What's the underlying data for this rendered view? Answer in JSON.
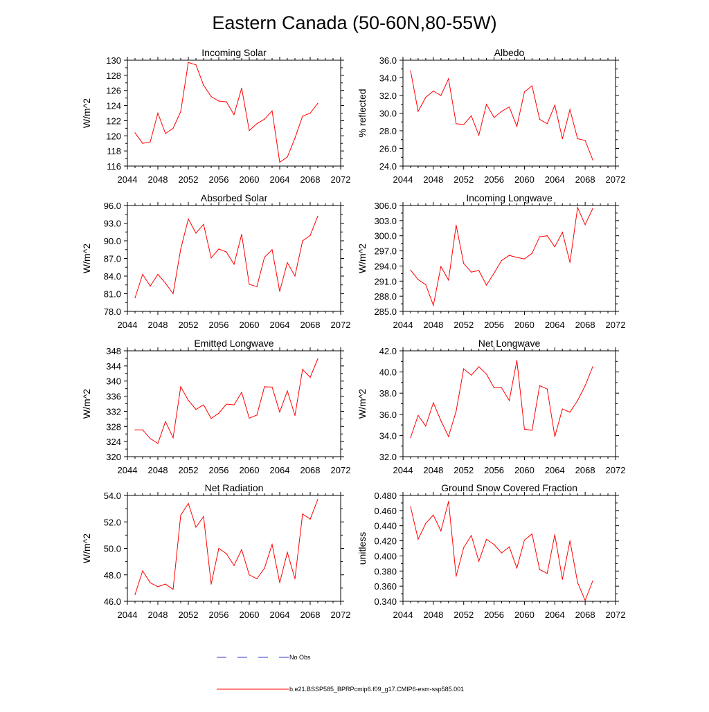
{
  "page_title": "Eastern Canada (50-60N,80-55W)",
  "legend": {
    "items": [
      {
        "label": "No Obs",
        "color": "#3333cc",
        "style": "dashed"
      },
      {
        "label": "b.e21.BSSP585_BPRPcmip6.f09_g17.CMIP6-esm-ssp585.001",
        "color": "#ff0000",
        "style": "solid"
      }
    ]
  },
  "chart_data": [
    {
      "type": "line",
      "title": "Incoming Solar",
      "xlabel": "",
      "ylabel": "W/m^2",
      "xlim": [
        2044,
        2072
      ],
      "ylim": [
        116,
        130
      ],
      "xticks": [
        "2044",
        "2048",
        "2052",
        "2056",
        "2060",
        "2064",
        "2068",
        "2072"
      ],
      "yticks": [
        "116",
        "118",
        "120",
        "122",
        "124",
        "126",
        "128",
        "130"
      ],
      "color": "#ff0000",
      "x": [
        2045,
        2046,
        2047,
        2048,
        2049,
        2050,
        2051,
        2052,
        2053,
        2054,
        2055,
        2056,
        2057,
        2058,
        2059,
        2060,
        2061,
        2062,
        2063,
        2064,
        2065,
        2066,
        2067,
        2068,
        2069
      ],
      "y": [
        120.4,
        119.0,
        119.2,
        123.0,
        120.3,
        121.0,
        123.2,
        129.7,
        129.4,
        126.7,
        125.2,
        124.6,
        124.5,
        122.8,
        126.3,
        120.7,
        121.6,
        122.2,
        123.3,
        116.5,
        117.2,
        119.7,
        122.6,
        123.0,
        124.3
      ]
    },
    {
      "type": "line",
      "title": "Albedo",
      "xlabel": "",
      "ylabel": "% reflected",
      "xlim": [
        2044,
        2072
      ],
      "ylim": [
        24,
        36
      ],
      "xticks": [
        "2044",
        "2048",
        "2052",
        "2056",
        "2060",
        "2064",
        "2068",
        "2072"
      ],
      "yticks": [
        "24.0",
        "26.0",
        "28.0",
        "30.0",
        "32.0",
        "34.0",
        "36.0"
      ],
      "color": "#ff0000",
      "x": [
        2045,
        2046,
        2047,
        2048,
        2049,
        2050,
        2051,
        2052,
        2053,
        2054,
        2055,
        2056,
        2057,
        2058,
        2059,
        2060,
        2061,
        2062,
        2063,
        2064,
        2065,
        2066,
        2067,
        2068,
        2069
      ],
      "y": [
        34.8,
        30.2,
        31.8,
        32.5,
        32.0,
        33.9,
        28.8,
        28.7,
        29.7,
        27.5,
        31.0,
        29.5,
        30.2,
        30.7,
        28.5,
        32.4,
        33.1,
        29.3,
        28.8,
        30.9,
        27.1,
        30.4,
        27.1,
        26.9,
        24.7
      ]
    },
    {
      "type": "line",
      "title": "Absorbed Solar",
      "xlabel": "",
      "ylabel": "W/m^2",
      "xlim": [
        2044,
        2072
      ],
      "ylim": [
        78,
        96
      ],
      "xticks": [
        "2044",
        "2048",
        "2052",
        "2056",
        "2060",
        "2064",
        "2068",
        "2072"
      ],
      "yticks": [
        "78.0",
        "81.0",
        "84.0",
        "87.0",
        "90.0",
        "93.0",
        "96.0"
      ],
      "color": "#ff0000",
      "x": [
        2045,
        2046,
        2047,
        2048,
        2049,
        2050,
        2051,
        2052,
        2053,
        2054,
        2055,
        2056,
        2057,
        2058,
        2059,
        2060,
        2061,
        2062,
        2063,
        2064,
        2065,
        2066,
        2067,
        2068,
        2069
      ],
      "y": [
        80.3,
        84.3,
        82.3,
        84.3,
        82.8,
        81.0,
        88.6,
        93.7,
        91.3,
        92.8,
        87.1,
        88.6,
        88.1,
        86.0,
        91.1,
        82.6,
        82.2,
        87.2,
        88.5,
        81.4,
        86.3,
        84.0,
        90.0,
        90.9,
        94.2
      ]
    },
    {
      "type": "line",
      "title": "Incoming Longwave",
      "xlabel": "",
      "ylabel": "W/m^2",
      "xlim": [
        2044,
        2072
      ],
      "ylim": [
        285,
        306
      ],
      "xticks": [
        "2044",
        "2048",
        "2052",
        "2056",
        "2060",
        "2064",
        "2068",
        "2072"
      ],
      "yticks": [
        "285.0",
        "288.0",
        "291.0",
        "294.0",
        "297.0",
        "300.0",
        "303.0",
        "306.0"
      ],
      "color": "#ff0000",
      "x": [
        2045,
        2046,
        2047,
        2048,
        2049,
        2050,
        2051,
        2052,
        2053,
        2054,
        2055,
        2056,
        2057,
        2058,
        2059,
        2060,
        2061,
        2062,
        2063,
        2064,
        2065,
        2066,
        2067,
        2068,
        2069
      ],
      "y": [
        293.2,
        291.3,
        290.3,
        286.2,
        293.9,
        291.2,
        302.1,
        294.5,
        292.8,
        293.1,
        290.2,
        292.6,
        295.1,
        296.1,
        295.7,
        295.4,
        296.5,
        299.8,
        300.0,
        297.8,
        300.7,
        294.7,
        305.6,
        302.2,
        305.4
      ]
    },
    {
      "type": "line",
      "title": "Emitted Longwave",
      "xlabel": "",
      "ylabel": "W/m^2",
      "xlim": [
        2044,
        2072
      ],
      "ylim": [
        320,
        348
      ],
      "xticks": [
        "2044",
        "2048",
        "2052",
        "2056",
        "2060",
        "2064",
        "2068",
        "2072"
      ],
      "yticks": [
        "320",
        "324",
        "328",
        "332",
        "336",
        "340",
        "344",
        "348"
      ],
      "color": "#ff0000",
      "x": [
        2045,
        2046,
        2047,
        2048,
        2049,
        2050,
        2051,
        2052,
        2053,
        2054,
        2055,
        2056,
        2057,
        2058,
        2059,
        2060,
        2061,
        2062,
        2063,
        2064,
        2065,
        2066,
        2067,
        2068,
        2069
      ],
      "y": [
        327.1,
        327.1,
        324.8,
        323.5,
        329.3,
        325.0,
        338.5,
        334.9,
        332.5,
        333.7,
        330.1,
        331.5,
        333.9,
        333.7,
        337.0,
        330.2,
        331.0,
        338.5,
        338.4,
        331.8,
        337.4,
        330.9,
        343.1,
        341.0,
        345.9
      ]
    },
    {
      "type": "line",
      "title": "Net Longwave",
      "xlabel": "",
      "ylabel": "W/m^2",
      "xlim": [
        2044,
        2072
      ],
      "ylim": [
        32,
        42
      ],
      "xticks": [
        "2044",
        "2048",
        "2052",
        "2056",
        "2060",
        "2064",
        "2068",
        "2072"
      ],
      "yticks": [
        "32.0",
        "34.0",
        "36.0",
        "38.0",
        "40.0",
        "42.0"
      ],
      "color": "#ff0000",
      "x": [
        2045,
        2046,
        2047,
        2048,
        2049,
        2050,
        2051,
        2052,
        2053,
        2054,
        2055,
        2056,
        2057,
        2058,
        2059,
        2060,
        2061,
        2062,
        2063,
        2064,
        2065,
        2066,
        2067,
        2068,
        2069
      ],
      "y": [
        33.8,
        35.9,
        34.9,
        37.1,
        35.4,
        33.9,
        36.3,
        40.3,
        39.7,
        40.5,
        39.8,
        38.5,
        38.5,
        37.3,
        41.1,
        34.6,
        34.5,
        38.7,
        38.4,
        33.9,
        36.5,
        36.2,
        37.3,
        38.7,
        40.5
      ]
    },
    {
      "type": "line",
      "title": "Net Radiation",
      "xlabel": "",
      "ylabel": "W/m^2",
      "xlim": [
        2044,
        2072
      ],
      "ylim": [
        46,
        54
      ],
      "xticks": [
        "2044",
        "2048",
        "2052",
        "2056",
        "2060",
        "2064",
        "2068",
        "2072"
      ],
      "yticks": [
        "46.0",
        "48.0",
        "50.0",
        "52.0",
        "54.0"
      ],
      "color": "#ff0000",
      "x": [
        2045,
        2046,
        2047,
        2048,
        2049,
        2050,
        2051,
        2052,
        2053,
        2054,
        2055,
        2056,
        2057,
        2058,
        2059,
        2060,
        2061,
        2062,
        2063,
        2064,
        2065,
        2066,
        2067,
        2068,
        2069
      ],
      "y": [
        46.5,
        48.3,
        47.4,
        47.1,
        47.3,
        46.9,
        52.5,
        53.4,
        51.6,
        52.4,
        47.3,
        50.0,
        49.6,
        48.7,
        49.9,
        48.0,
        47.7,
        48.5,
        50.3,
        47.4,
        49.7,
        47.7,
        52.6,
        52.2,
        53.7
      ]
    },
    {
      "type": "line",
      "title": "Ground Snow Covered Fraction",
      "xlabel": "",
      "ylabel": "unitless",
      "xlim": [
        2044,
        2072
      ],
      "ylim": [
        0.34,
        0.48
      ],
      "xticks": [
        "2044",
        "2048",
        "2052",
        "2056",
        "2060",
        "2064",
        "2068",
        "2072"
      ],
      "yticks": [
        "0.340",
        "0.360",
        "0.380",
        "0.400",
        "0.420",
        "0.440",
        "0.460",
        "0.480"
      ],
      "color": "#ff0000",
      "x": [
        2045,
        2046,
        2047,
        2048,
        2049,
        2050,
        2051,
        2052,
        2053,
        2054,
        2055,
        2056,
        2057,
        2058,
        2059,
        2060,
        2061,
        2062,
        2063,
        2064,
        2065,
        2066,
        2067,
        2068,
        2069
      ],
      "y": [
        0.465,
        0.422,
        0.443,
        0.454,
        0.433,
        0.472,
        0.373,
        0.411,
        0.427,
        0.393,
        0.422,
        0.415,
        0.404,
        0.412,
        0.384,
        0.421,
        0.429,
        0.382,
        0.377,
        0.428,
        0.369,
        0.42,
        0.365,
        0.341,
        0.367
      ]
    }
  ]
}
